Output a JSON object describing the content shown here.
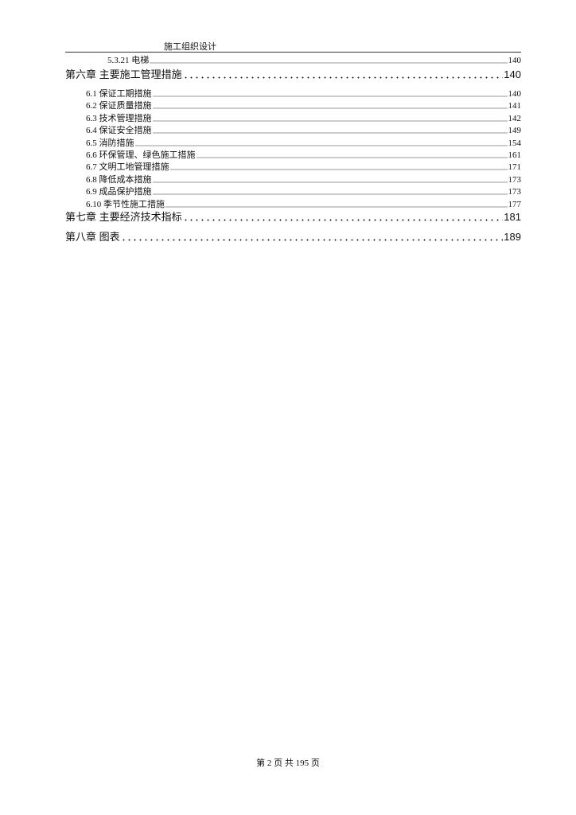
{
  "header": {
    "title": "施工组织设计"
  },
  "toc": {
    "entry_5_3_21": {
      "label": "5.3.21 电梯",
      "page": "140"
    },
    "chapter6": {
      "label": "第六章  主要施工管理措施",
      "page": "140",
      "items": [
        {
          "label": "6.1 保证工期措施",
          "page": "140"
        },
        {
          "label": "6.2 保证质量措施",
          "page": "141"
        },
        {
          "label": "6.3 技术管理措施",
          "page": "142"
        },
        {
          "label": "6.4 保证安全措施",
          "page": "149"
        },
        {
          "label": "6.5 消防措施",
          "page": "154"
        },
        {
          "label": "6.6 环保管理、绿色施工措施",
          "page": "161"
        },
        {
          "label": "6.7 文明工地管理措施",
          "page": "171"
        },
        {
          "label": "6.8 降低成本措施",
          "page": "173"
        },
        {
          "label": "6.9 成品保护措施",
          "page": "173"
        },
        {
          "label": "6.10 季节性施工措施",
          "page": "177"
        }
      ]
    },
    "chapter7": {
      "label": "第七章  主要经济技术指标",
      "page": "181"
    },
    "chapter8": {
      "label": "第八章  图表",
      "page": "189"
    }
  },
  "footer": {
    "page_info": "第 2 页 共 195 页"
  }
}
